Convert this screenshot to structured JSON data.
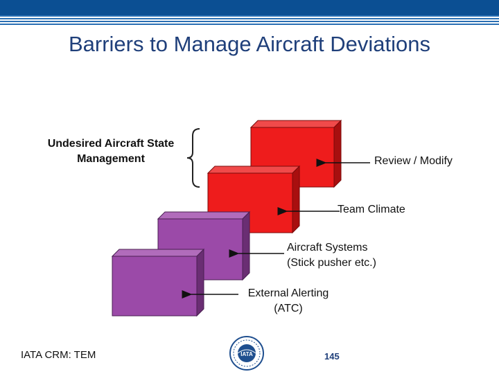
{
  "slide": {
    "title": "Barriers to Manage Aircraft Deviations",
    "left_label_line1": "Undesired Aircraft State",
    "left_label_line2": "Management",
    "footer_text": "IATA CRM: TEM",
    "page_number": "145",
    "logo_text": "IATA"
  },
  "barriers": [
    {
      "line1": "Review / Modify",
      "line2": "",
      "color": "#ee1c1c"
    },
    {
      "line1": "Team Climate",
      "line2": "",
      "color": "#ee1c1c"
    },
    {
      "line1": "Aircraft Systems",
      "line2": "(Stick pusher etc.)",
      "color": "#9b4aa8"
    },
    {
      "line1": "External Alerting",
      "line2": "(ATC)",
      "color": "#9b4aa8"
    }
  ],
  "colors": {
    "title": "#1f3f7a",
    "header_bar": "#0b4f93",
    "red_face": "#ee1c1c",
    "red_top": "#f04a4a",
    "red_side": "#a80f0f",
    "purple_face": "#9b4aa8",
    "purple_top": "#b16cbb",
    "purple_side": "#6a2e73"
  }
}
